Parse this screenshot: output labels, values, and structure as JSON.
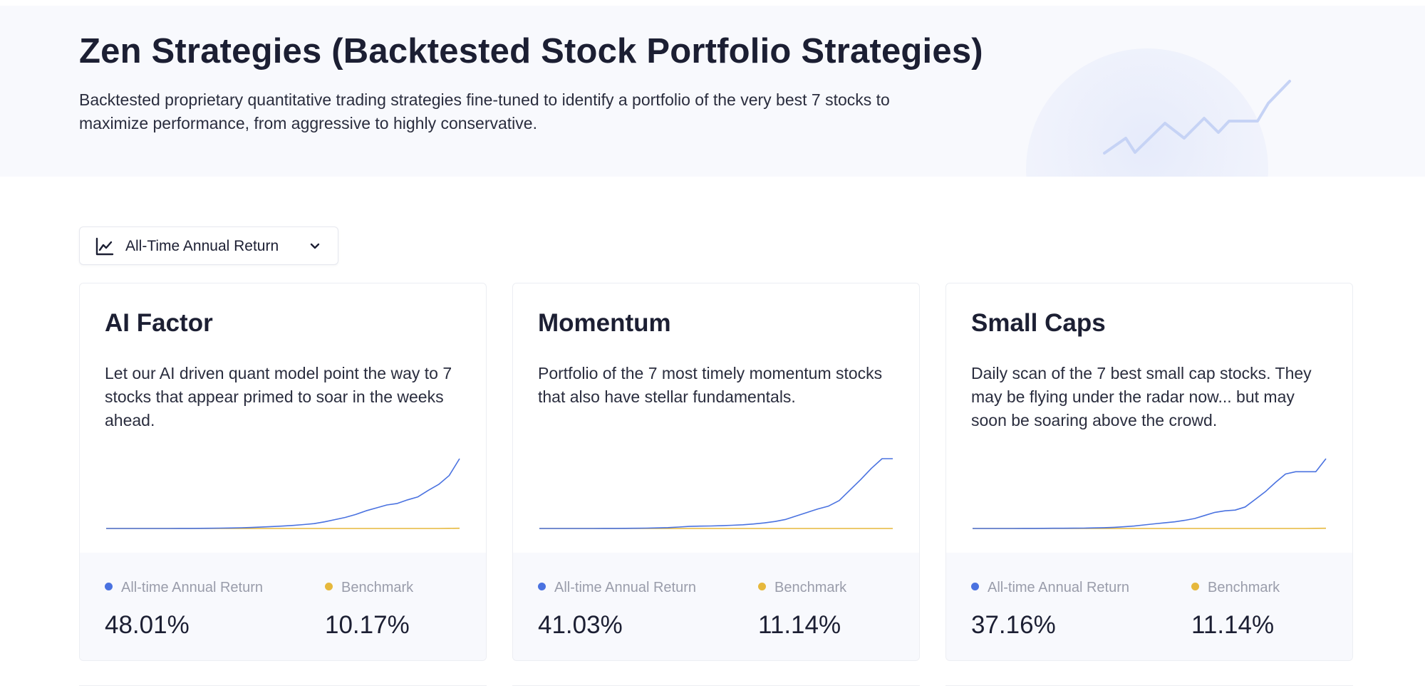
{
  "header": {
    "title": "Zen Strategies (Backtested Stock Portfolio Strategies)",
    "description": "Backtested proprietary quantitative trading strategies fine-tuned to identify a portfolio of the very best 7 stocks to maximize performance, from aggressive to highly conservative."
  },
  "sort_dropdown": {
    "label": "All-Time Annual Return",
    "icon": "line-chart-icon",
    "chevron": "chevron-down-icon"
  },
  "colors": {
    "strategy_line": "#4a72e0",
    "benchmark_line": "#e6b83c",
    "hero_bg": "#f8f9fd"
  },
  "legend": {
    "strategy": "All-time Annual Return",
    "benchmark": "Benchmark"
  },
  "cards": [
    {
      "title": "AI Factor",
      "description": "Let our AI driven quant model point the way to 7 stocks that appear primed to soar in the weeks ahead.",
      "strategy_return": "48.01%",
      "benchmark_return": "10.17%",
      "chart_data": {
        "type": "line",
        "series": [
          {
            "values": [
              0,
              0,
              0,
              0,
              0,
              0,
              0,
              0.1,
              0.1,
              0.2,
              0.3,
              0.5,
              0.7,
              1.0,
              1.4,
              2.0,
              2.6,
              3.3,
              4.2,
              5.3,
              6.6,
              9,
              12,
              15,
              19,
              24,
              28,
              32,
              34,
              39,
              43,
              52,
              60,
              72,
              95
            ]
          },
          {
            "values": [
              0,
              0,
              0,
              0,
              0,
              0,
              0,
              0,
              0,
              0,
              0,
              0,
              0,
              0,
              0,
              0,
              0,
              0,
              0,
              0,
              0,
              0,
              0,
              0,
              0,
              0,
              0,
              0,
              0,
              0,
              0,
              0,
              0,
              0.2,
              0.3
            ]
          }
        ]
      }
    },
    {
      "title": "Momentum",
      "description": "Portfolio of the 7 most timely momentum stocks that also have stellar fundamentals.",
      "strategy_return": "41.03%",
      "benchmark_return": "11.14%",
      "chart_data": {
        "type": "line",
        "series": [
          {
            "values": [
              0,
              0,
              0,
              0,
              0,
              0,
              0.1,
              0.1,
              0.2,
              0.3,
              0.5,
              0.8,
              1.2,
              2.0,
              3.0,
              3.4,
              3.6,
              4.0,
              4.6,
              5.3,
              6.4,
              8,
              10,
              13,
              18,
              23,
              28,
              32,
              40,
              55,
              70,
              86,
              100,
              100
            ]
          },
          {
            "values": [
              0,
              0,
              0,
              0,
              0,
              0,
              0,
              0,
              0,
              0,
              0,
              0,
              0,
              0,
              0,
              0,
              0,
              0,
              0,
              0,
              0,
              0,
              0,
              0,
              0,
              0,
              0,
              0,
              0,
              0,
              0,
              0,
              0,
              0
            ]
          }
        ]
      }
    },
    {
      "title": "Small Caps",
      "description": "Daily scan of the 7 best small cap stocks. They may be flying under the radar now... but may soon be soaring above the crowd.",
      "strategy_return": "37.16%",
      "benchmark_return": "11.14%",
      "chart_data": {
        "type": "line",
        "series": [
          {
            "values": [
              0,
              0,
              0,
              0,
              0,
              0.1,
              0.1,
              0.2,
              0.3,
              0.3,
              0.4,
              0.5,
              0.7,
              1.0,
              1.5,
              2.2,
              3.2,
              4.6,
              6,
              7.3,
              8.6,
              10.6,
              13,
              17,
              21,
              23,
              24,
              28,
              38,
              48,
              60,
              71,
              74,
              74,
              74,
              91
            ]
          },
          {
            "values": [
              0,
              0,
              0,
              0,
              0,
              0,
              0,
              0,
              0,
              0,
              0,
              0,
              0,
              0,
              0,
              0,
              0,
              0,
              0,
              0,
              0,
              0,
              0,
              0,
              0,
              0,
              0,
              0,
              0,
              0,
              0,
              0,
              0,
              0,
              0.2,
              0.3
            ]
          }
        ]
      }
    }
  ]
}
